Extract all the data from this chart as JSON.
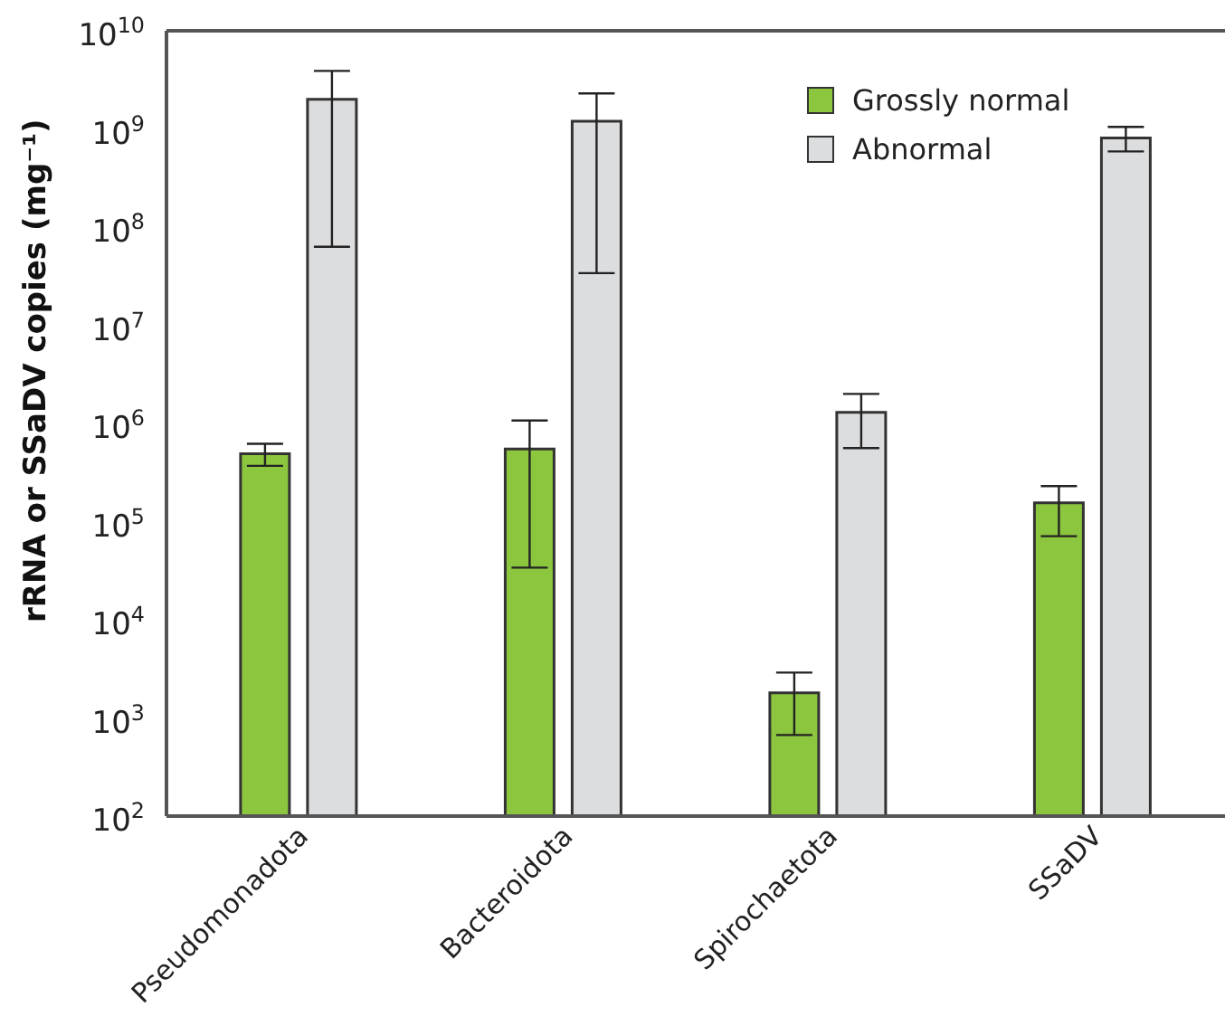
{
  "chart_data": {
    "type": "bar",
    "ylabel": "rRNA or SSaDV copies (mg⁻¹)",
    "categories": [
      "Pseudomonadota",
      "Bacteroidota",
      "Spirochaetota",
      "SSaDV"
    ],
    "series": [
      {
        "name": "Grossly normal",
        "color": "#8cc63f",
        "values": [
          490000,
          550000,
          1800,
          155000
        ],
        "errors": [
          [
            370000,
            620000
          ],
          [
            34000,
            1070000
          ],
          [
            670,
            2900
          ],
          [
            71000,
            230000
          ]
        ]
      },
      {
        "name": "Abnormal",
        "color": "#dcdddf",
        "values": [
          2000000000,
          1200000000,
          1300000,
          810000000
        ],
        "errors": [
          [
            63000000,
            3900000000
          ],
          [
            34000000,
            2300000000
          ],
          [
            560000,
            2000000
          ],
          [
            590000000,
            1050000000
          ]
        ]
      }
    ],
    "log": true,
    "ylim": [
      100,
      10000000000
    ],
    "yticks": [
      {
        "value": 100,
        "label": "10$^{2}$"
      },
      {
        "value": 1000,
        "label": "10$^{3}$"
      },
      {
        "value": 10000,
        "label": "10$^{4}$"
      },
      {
        "value": 100000,
        "label": "10$^{5}$"
      },
      {
        "value": 1000000,
        "label": "10$^{6}$"
      },
      {
        "value": 10000000,
        "label": "10$^{7}$"
      },
      {
        "value": 100000000,
        "label": "10$^{8}$"
      },
      {
        "value": 1000000000,
        "label": "10$^{9}$"
      },
      {
        "value": 10000000000,
        "label": "10$^{10}$"
      }
    ],
    "grid": false,
    "legend": "top right"
  }
}
